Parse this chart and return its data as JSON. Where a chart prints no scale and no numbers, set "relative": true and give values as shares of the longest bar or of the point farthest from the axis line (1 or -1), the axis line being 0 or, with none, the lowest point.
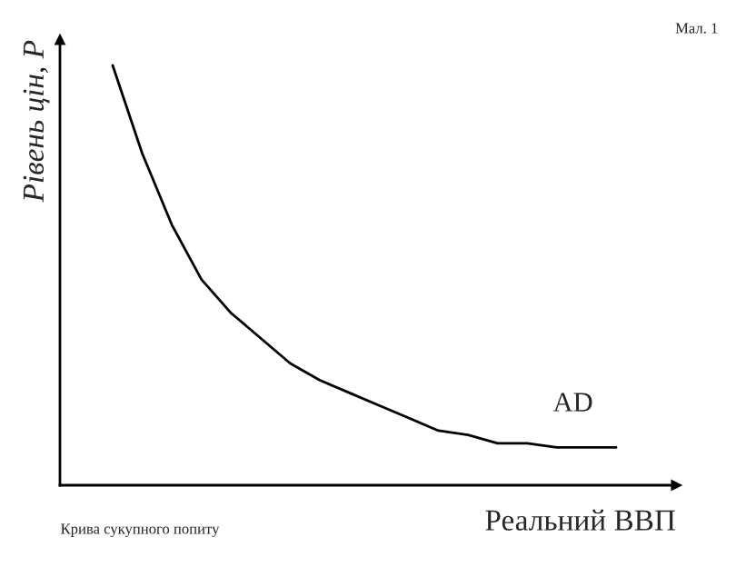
{
  "chart_data": {
    "type": "line",
    "relative": true,
    "xlabel": "Реальний ВВП",
    "ylabel": "Рівень цін, P",
    "annotations": [
      "Мал. 1",
      "Крива сукупного попиту"
    ],
    "categories": [
      null,
      null,
      null,
      null,
      null,
      null,
      null,
      null,
      null,
      null,
      null,
      null,
      null,
      null,
      null,
      null,
      null,
      null
    ],
    "series": [
      {
        "name": "AD",
        "color": "#000000",
        "values": [
          1.0,
          0.79,
          0.62,
          0.49,
          0.41,
          0.35,
          0.29,
          0.25,
          0.22,
          0.19,
          0.16,
          0.13,
          0.12,
          0.1,
          0.1,
          0.09,
          0.09,
          0.09
        ]
      }
    ],
    "grid": false,
    "legend": false,
    "marker": "none",
    "line_style": "solid"
  }
}
